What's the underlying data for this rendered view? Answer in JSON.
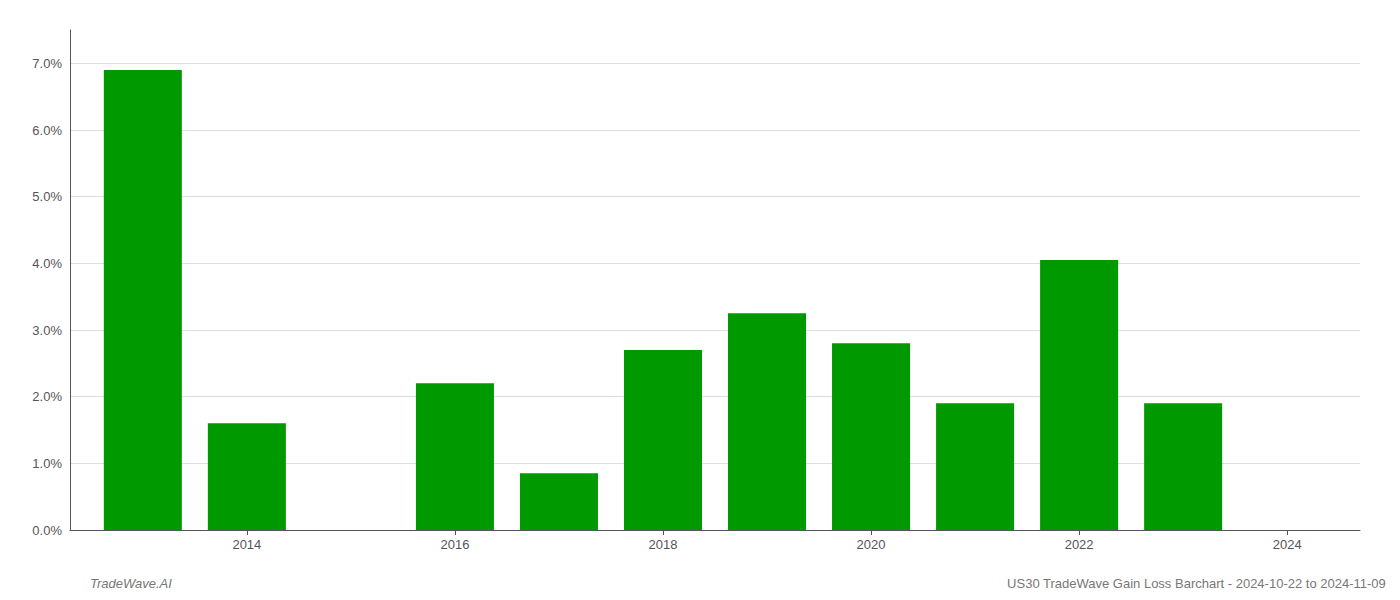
{
  "chart_data": {
    "type": "bar",
    "x": [
      2013,
      2014,
      2016,
      2017,
      2018,
      2019,
      2020,
      2021,
      2022,
      2023
    ],
    "values": [
      0.069,
      0.016,
      0.022,
      0.0085,
      0.027,
      0.0325,
      0.028,
      0.019,
      0.0405,
      0.019
    ],
    "color": "#009900",
    "xlim": [
      2012.3,
      2024.7
    ],
    "xticks": [
      2014,
      2016,
      2018,
      2020,
      2022,
      2024
    ],
    "ylim": [
      0,
      0.075
    ],
    "yticks": [
      {
        "value": 0.0,
        "label": "0.0%"
      },
      {
        "value": 0.01,
        "label": "1.0%"
      },
      {
        "value": 0.02,
        "label": "2.0%"
      },
      {
        "value": 0.03,
        "label": "3.0%"
      },
      {
        "value": 0.04,
        "label": "4.0%"
      },
      {
        "value": 0.05,
        "label": "5.0%"
      },
      {
        "value": 0.06,
        "label": "6.0%"
      },
      {
        "value": 0.07,
        "label": "7.0%"
      }
    ],
    "grid": true,
    "annotations": [
      "TradeWave.AI",
      "US30 TradeWave Gain Loss Barchart - 2024-10-22 to 2024-11-09"
    ]
  }
}
